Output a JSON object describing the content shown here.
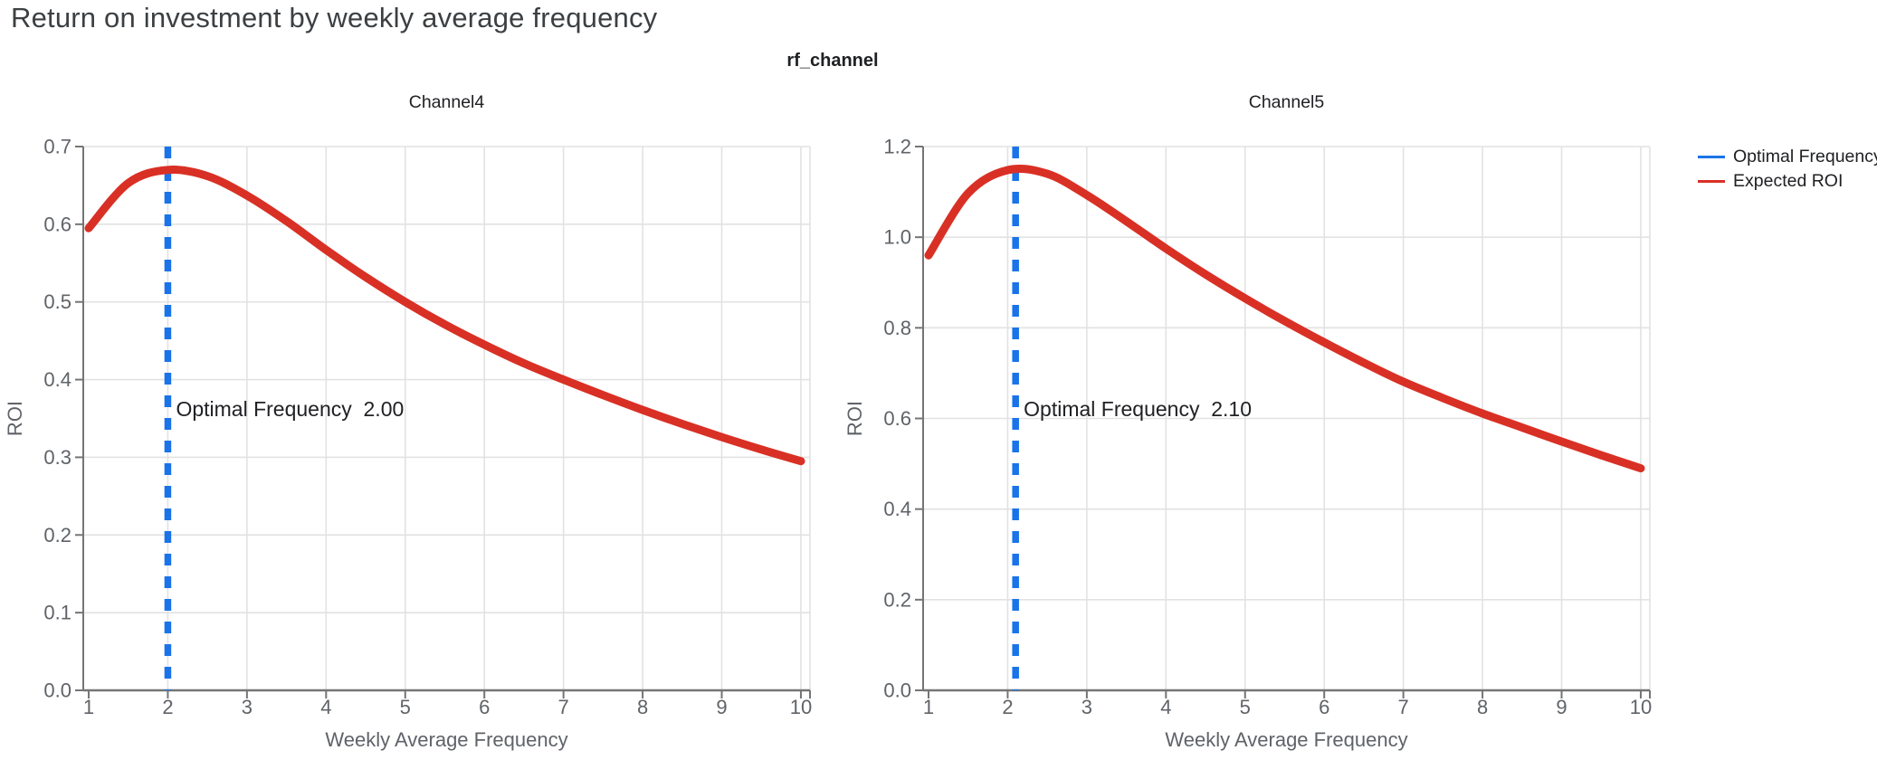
{
  "page": {
    "title": "Return on investment by weekly average frequency",
    "suptitle": "rf_channel"
  },
  "legend": {
    "position": "top-right",
    "items": [
      {
        "label": "Optimal Frequency",
        "color": "#1a73e8"
      },
      {
        "label": "Expected ROI",
        "color": "#d93025"
      }
    ]
  },
  "colors": {
    "optimal_frequency": "#1a73e8",
    "expected_roi": "#d93025",
    "grid": "#e2e2e2",
    "axis": "#757575",
    "tick_label": "#5f6368",
    "axis_title": "#5f6368",
    "title_text": "#3c4043",
    "black_text": "#202124",
    "background": "#ffffff"
  },
  "chart_data": [
    {
      "type": "line",
      "title": "Channel4",
      "xlabel": "Weekly Average Frequency",
      "ylabel": "ROI",
      "xlim": [
        1,
        10
      ],
      "ylim": [
        0.0,
        0.7
      ],
      "xticks": [
        1,
        2,
        3,
        4,
        5,
        6,
        7,
        8,
        9,
        10
      ],
      "yticks": [
        0.0,
        0.1,
        0.2,
        0.3,
        0.4,
        0.5,
        0.6,
        0.7
      ],
      "ytick_labels": [
        "0.0",
        "0.1",
        "0.2",
        "0.3",
        "0.4",
        "0.5",
        "0.6",
        "0.7"
      ],
      "grid": true,
      "vline": {
        "name": "Optimal Frequency",
        "x": 2.0,
        "style": "dashed"
      },
      "annotation": "Optimal Frequency  2.00",
      "series": [
        {
          "name": "Expected ROI",
          "x": [
            1,
            1.5,
            2,
            2.5,
            3,
            3.5,
            4,
            4.5,
            5,
            5.5,
            6,
            6.5,
            7,
            7.5,
            8,
            8.5,
            9,
            9.5,
            10
          ],
          "y": [
            0.595,
            0.653,
            0.67,
            0.662,
            0.637,
            0.604,
            0.567,
            0.532,
            0.5,
            0.471,
            0.445,
            0.421,
            0.4,
            0.38,
            0.361,
            0.343,
            0.326,
            0.31,
            0.295
          ]
        }
      ]
    },
    {
      "type": "line",
      "title": "Channel5",
      "xlabel": "Weekly Average Frequency",
      "ylabel": "ROI",
      "xlim": [
        1,
        10
      ],
      "ylim": [
        0.0,
        1.2
      ],
      "xticks": [
        1,
        2,
        3,
        4,
        5,
        6,
        7,
        8,
        9,
        10
      ],
      "yticks": [
        0.0,
        0.2,
        0.4,
        0.6,
        0.8,
        1.0,
        1.2
      ],
      "ytick_labels": [
        "0.0",
        "0.2",
        "0.4",
        "0.6",
        "0.8",
        "1.0",
        "1.2"
      ],
      "grid": true,
      "vline": {
        "name": "Optimal Frequency",
        "x": 2.1,
        "style": "dashed"
      },
      "annotation": "Optimal Frequency  2.10",
      "series": [
        {
          "name": "Expected ROI",
          "x": [
            1,
            1.5,
            2,
            2.5,
            3,
            3.5,
            4,
            4.5,
            5,
            5.5,
            6,
            6.5,
            7,
            7.5,
            8,
            8.5,
            9,
            9.5,
            10
          ],
          "y": [
            0.96,
            1.097,
            1.148,
            1.14,
            1.093,
            1.035,
            0.975,
            0.918,
            0.865,
            0.815,
            0.768,
            0.723,
            0.681,
            0.645,
            0.611,
            0.58,
            0.549,
            0.519,
            0.49
          ]
        }
      ]
    }
  ]
}
